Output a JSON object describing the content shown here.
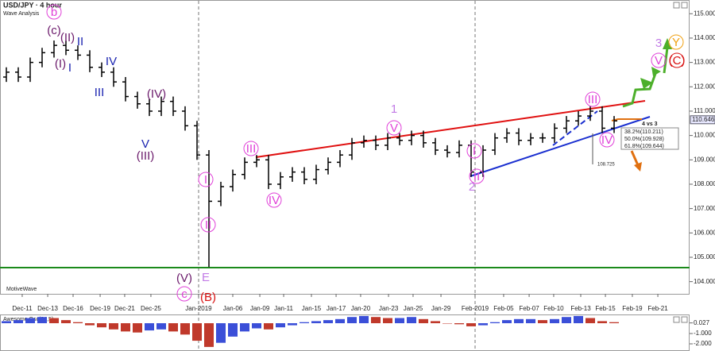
{
  "chart_data": {
    "type": "ohlc",
    "title": "USD/JPY · 4 hour",
    "subtitle": "Wave Analysis",
    "watermark": "MotiveWave",
    "categories": [
      null,
      null,
      null,
      null,
      null,
      null,
      null,
      null,
      null,
      null,
      null,
      null,
      null,
      null,
      null,
      null,
      null,
      null,
      null,
      null,
      null,
      null,
      null,
      null,
      null,
      null,
      null,
      null,
      null,
      null,
      null,
      null,
      null,
      null,
      null,
      null,
      null,
      null,
      null,
      null,
      null,
      null,
      null,
      null,
      null,
      null,
      null,
      null,
      null,
      null,
      null,
      null
    ],
    "open": [
      112.4,
      112.6,
      112.4,
      113.0,
      113.4,
      113.7,
      113.5,
      113.3,
      112.8,
      112.6,
      112.2,
      111.6,
      111.3,
      111.0,
      111.4,
      111.0,
      110.4,
      109.2,
      107.3,
      107.9,
      108.4,
      108.9,
      109.0,
      108.0,
      108.3,
      108.5,
      108.2,
      108.6,
      108.9,
      109.2,
      109.7,
      109.8,
      109.6,
      109.9,
      109.8,
      110.0,
      109.7,
      109.4,
      109.3,
      109.6,
      108.5,
      109.4,
      109.9,
      110.1,
      109.8,
      109.9,
      109.9,
      110.3,
      110.6,
      110.8,
      111.0,
      110.3
    ],
    "high": [
      112.8,
      112.8,
      113.2,
      113.6,
      113.9,
      113.9,
      113.7,
      113.5,
      113.0,
      112.8,
      112.4,
      111.8,
      111.5,
      111.6,
      111.6,
      111.2,
      110.6,
      109.4,
      108.1,
      108.6,
      109.1,
      109.2,
      109.2,
      108.5,
      108.7,
      108.7,
      108.8,
      109.1,
      109.4,
      109.9,
      110.0,
      110.0,
      110.1,
      110.1,
      110.2,
      110.2,
      109.9,
      109.6,
      109.8,
      109.8,
      109.6,
      110.1,
      110.3,
      110.3,
      110.1,
      110.1,
      110.5,
      110.8,
      111.0,
      111.2,
      111.2,
      110.8
    ],
    "low": [
      112.2,
      112.2,
      112.2,
      112.8,
      113.2,
      113.3,
      113.1,
      112.6,
      112.4,
      112.0,
      111.4,
      111.1,
      110.8,
      110.8,
      110.8,
      110.2,
      109.0,
      104.6,
      107.1,
      107.7,
      108.2,
      108.7,
      107.8,
      107.8,
      108.1,
      108.0,
      108.0,
      108.4,
      108.7,
      109.0,
      109.5,
      109.4,
      109.4,
      109.6,
      109.6,
      109.5,
      109.2,
      109.1,
      109.1,
      108.3,
      108.3,
      109.2,
      109.7,
      109.6,
      109.6,
      109.7,
      109.7,
      110.1,
      110.4,
      110.6,
      110.1,
      110.1
    ],
    "close": [
      112.6,
      112.4,
      113.0,
      113.4,
      113.7,
      113.5,
      113.3,
      112.8,
      112.6,
      112.2,
      111.6,
      111.3,
      111.0,
      111.4,
      111.0,
      110.4,
      109.2,
      107.3,
      107.9,
      108.4,
      108.9,
      109.0,
      108.0,
      108.3,
      108.5,
      108.2,
      108.6,
      108.9,
      109.2,
      109.7,
      109.8,
      109.6,
      109.9,
      109.8,
      110.0,
      109.7,
      109.4,
      109.3,
      109.6,
      108.5,
      109.4,
      109.9,
      110.1,
      109.8,
      109.9,
      109.9,
      110.3,
      110.6,
      110.8,
      111.0,
      110.3,
      110.6
    ],
    "up_color": "#000000",
    "down_color": "#000000",
    "xlim": [
      -0.533,
      57.333
    ],
    "xticks": [
      {
        "value": 1.33,
        "label": "Dec-11"
      },
      {
        "value": 3.47,
        "label": "Dec-13"
      },
      {
        "value": 5.6,
        "label": "Dec-16"
      },
      {
        "value": 7.87,
        "label": "Dec-19"
      },
      {
        "value": 9.93,
        "label": "Dec-21"
      },
      {
        "value": 12.13,
        "label": "Dec-25"
      },
      {
        "value": 16.13,
        "label": "Jan-2019"
      },
      {
        "value": 19.0,
        "label": "Jan-06"
      },
      {
        "value": 21.27,
        "label": "Jan-09"
      },
      {
        "value": 23.27,
        "label": "Jan-11"
      },
      {
        "value": 25.6,
        "label": "Jan-15"
      },
      {
        "value": 27.67,
        "label": "Jan-17"
      },
      {
        "value": 29.73,
        "label": "Jan-20"
      },
      {
        "value": 32.07,
        "label": "Jan-23"
      },
      {
        "value": 34.13,
        "label": "Jan-25"
      },
      {
        "value": 36.47,
        "label": "Jan-29"
      },
      {
        "value": 39.33,
        "label": "Feb-2019"
      },
      {
        "value": 41.73,
        "label": "Feb-05"
      },
      {
        "value": 43.87,
        "label": "Feb-07"
      },
      {
        "value": 45.93,
        "label": "Feb-10"
      },
      {
        "value": 48.2,
        "label": "Feb-13"
      },
      {
        "value": 50.27,
        "label": "Feb-15"
      },
      {
        "value": 52.53,
        "label": "Feb-19"
      },
      {
        "value": 54.67,
        "label": "Feb-21"
      }
    ],
    "ylim": [
      103.5,
      115.4
    ],
    "yticks": [
      {
        "value": 104,
        "label": "104.000"
      },
      {
        "value": 105,
        "label": "105.000"
      },
      {
        "value": 106,
        "label": "106.000"
      },
      {
        "value": 107,
        "label": "107.000"
      },
      {
        "value": 108,
        "label": "108.000"
      },
      {
        "value": 109,
        "label": "109.000"
      },
      {
        "value": 110,
        "label": "110.000"
      },
      {
        "value": 111,
        "label": "111.000"
      },
      {
        "value": 112,
        "label": "112.000"
      },
      {
        "value": 113,
        "label": "113.000"
      },
      {
        "value": 114,
        "label": "114.000"
      },
      {
        "value": 115,
        "label": "115.000"
      }
    ],
    "last_price": {
      "value": 110.646,
      "label": "110.646"
    },
    "annotations": [
      "b",
      "(c)",
      "(II)",
      "II",
      "(I)",
      "I",
      "IV",
      "III",
      "(IV)",
      "V",
      "(III)",
      "(V)",
      "c",
      "E",
      "(B)",
      "I",
      "II",
      "III",
      "IV",
      "1",
      "V",
      "I",
      "II",
      "2",
      "III",
      "IV",
      "3",
      "V",
      "Y",
      "(C)"
    ],
    "fib_title": "4 vs 3",
    "fib_levels": [
      "38.2%(110.211)",
      "50.0%(109.928)",
      "61.8%(109.644)"
    ],
    "target_label": "108.725",
    "oscillator": {
      "title": "Awesome Osc(34,5)",
      "values": [
        0.2,
        0.3,
        0.5,
        0.6,
        0.5,
        0.3,
        0.1,
        -0.2,
        -0.4,
        -0.6,
        -0.8,
        -0.9,
        -0.7,
        -0.6,
        -0.8,
        -1.1,
        -1.7,
        -2.3,
        -1.9,
        -1.3,
        -0.8,
        -0.5,
        -0.6,
        -0.4,
        -0.2,
        0.1,
        0.2,
        0.3,
        0.4,
        0.6,
        0.7,
        0.6,
        0.5,
        0.5,
        0.6,
        0.4,
        0.2,
        0.0,
        -0.1,
        -0.3,
        -0.2,
        0.1,
        0.3,
        0.4,
        0.4,
        0.3,
        0.4,
        0.6,
        0.7,
        0.5,
        0.2,
        0.1
      ],
      "up_color": "#3b4fd8",
      "down_color": "#c0392b",
      "ylim": [
        -2.54,
        0.77
      ],
      "yticks": [
        {
          "value": 0.027,
          "label": "0.027"
        },
        {
          "value": -1,
          "label": "-1.000"
        },
        {
          "value": -2,
          "label": "-2.000"
        }
      ]
    }
  }
}
